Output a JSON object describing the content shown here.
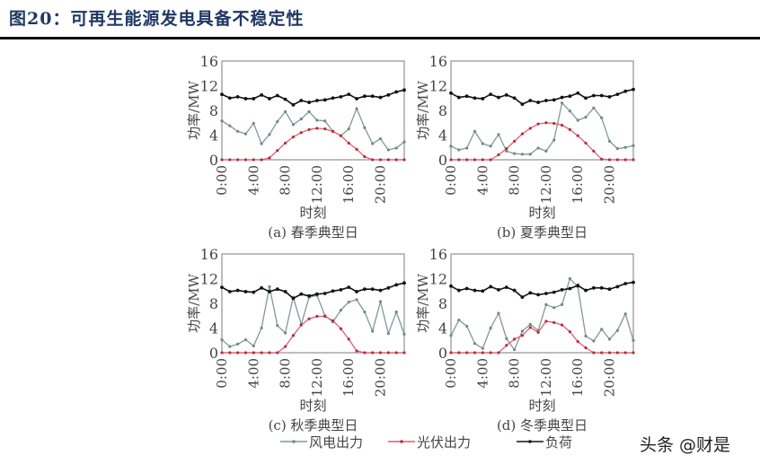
{
  "title": "图20：可再生能源发电具备不稳定性",
  "watermark": "头条 @财是",
  "legend": [
    {
      "label": "风电出力",
      "color": "#7a9a96"
    },
    {
      "label": "光伏出力",
      "color": "#e05a6a"
    },
    {
      "label": "负荷",
      "color": "#111111"
    }
  ],
  "colors": {
    "wind": "#7f9a97",
    "solar": "#e06070",
    "load": "#111111",
    "axis": "#999999",
    "text": "#444444"
  },
  "chart_data": [
    {
      "type": "line",
      "title": "(a) 春季典型日",
      "xlabel": "时刻",
      "ylabel": "功率/MW",
      "ylim": [
        0,
        16
      ],
      "yticks": [
        0,
        4,
        8,
        12,
        16
      ],
      "xtick_labels": [
        "0:00",
        "4:00",
        "8:00",
        "12:00",
        "16:00",
        "20:00"
      ],
      "x": [
        0,
        1,
        2,
        3,
        4,
        5,
        6,
        7,
        8,
        9,
        10,
        11,
        12,
        13,
        14,
        15,
        16,
        17,
        18,
        19,
        20,
        21,
        22,
        23
      ],
      "series": [
        {
          "name": "风电出力",
          "values": [
            6.3,
            5.5,
            4.6,
            4.2,
            5.9,
            2.6,
            4.1,
            6.2,
            7.8,
            5.7,
            6.6,
            7.8,
            6.4,
            6.3,
            4.6,
            3.9,
            5.0,
            8.3,
            5.2,
            2.6,
            3.4,
            1.6,
            1.9,
            2.9
          ]
        },
        {
          "name": "光伏出力",
          "values": [
            0,
            0,
            0,
            0,
            0,
            0,
            0.3,
            1.5,
            2.7,
            3.7,
            4.4,
            4.9,
            5.1,
            5.0,
            4.6,
            3.9,
            2.7,
            1.7,
            0.5,
            0,
            0,
            0,
            0,
            0
          ]
        },
        {
          "name": "负荷",
          "values": [
            10.6,
            10.0,
            10.2,
            9.9,
            9.9,
            10.5,
            9.9,
            10.4,
            9.8,
            8.9,
            9.6,
            9.3,
            9.6,
            9.7,
            10.0,
            10.2,
            10.6,
            9.9,
            10.3,
            10.3,
            10.1,
            10.5,
            11.0,
            11.3
          ]
        }
      ]
    },
    {
      "type": "line",
      "title": "(b) 夏季典型日",
      "xlabel": "时刻",
      "ylabel": "功率/MW",
      "ylim": [
        0,
        16
      ],
      "yticks": [
        0,
        4,
        8,
        12,
        16
      ],
      "xtick_labels": [
        "0:00",
        "4:00",
        "8:00",
        "12:00",
        "16:00",
        "20:00"
      ],
      "x": [
        0,
        1,
        2,
        3,
        4,
        5,
        6,
        7,
        8,
        9,
        10,
        11,
        12,
        13,
        14,
        15,
        16,
        17,
        18,
        19,
        20,
        21,
        22,
        23
      ],
      "series": [
        {
          "name": "风电出力",
          "values": [
            2.2,
            1.6,
            1.9,
            4.6,
            2.6,
            2.2,
            4.1,
            1.4,
            1.0,
            0.9,
            0.9,
            1.9,
            1.4,
            3.2,
            9.2,
            7.9,
            6.4,
            6.9,
            8.4,
            6.8,
            3.0,
            1.8,
            2.0,
            2.3
          ]
        },
        {
          "name": "光伏出力",
          "values": [
            0,
            0,
            0,
            0,
            0,
            0,
            0.8,
            1.8,
            3.0,
            4.2,
            5.1,
            5.8,
            6.0,
            5.9,
            5.6,
            4.9,
            3.9,
            2.7,
            1.4,
            0.1,
            0,
            0,
            0,
            0
          ]
        },
        {
          "name": "负荷",
          "values": [
            10.8,
            10.1,
            10.3,
            10.0,
            9.9,
            10.6,
            10.1,
            10.5,
            10.0,
            9.0,
            9.6,
            9.3,
            9.6,
            9.7,
            10.1,
            10.3,
            10.8,
            10.0,
            10.4,
            10.4,
            10.2,
            10.6,
            11.1,
            11.4
          ]
        }
      ]
    },
    {
      "type": "line",
      "title": "(c) 秋季典型日",
      "xlabel": "时刻",
      "ylabel": "功率/MW",
      "ylim": [
        0,
        16
      ],
      "yticks": [
        0,
        4,
        8,
        12,
        16
      ],
      "xtick_labels": [
        "0:00",
        "4:00",
        "8:00",
        "12:00",
        "16:00",
        "20:00"
      ],
      "x": [
        0,
        1,
        2,
        3,
        4,
        5,
        6,
        7,
        8,
        9,
        10,
        11,
        12,
        13,
        14,
        15,
        16,
        17,
        18,
        19,
        20,
        21,
        22,
        23
      ],
      "series": [
        {
          "name": "风电出力",
          "values": [
            2.1,
            1.0,
            1.4,
            2.1,
            1.1,
            4.0,
            10.7,
            4.4,
            3.2,
            9.0,
            4.6,
            9.0,
            9.3,
            6.0,
            5.0,
            6.9,
            8.2,
            8.6,
            6.6,
            3.5,
            8.3,
            3.1,
            6.6,
            3.0
          ]
        },
        {
          "name": "光伏出力",
          "values": [
            0,
            0,
            0,
            0,
            0,
            0,
            0,
            0,
            1.0,
            2.8,
            4.5,
            5.5,
            5.9,
            5.9,
            5.2,
            3.9,
            2.2,
            0.3,
            0,
            0,
            0,
            0,
            0,
            0
          ]
        },
        {
          "name": "负荷",
          "values": [
            10.6,
            9.9,
            10.1,
            9.9,
            9.8,
            10.5,
            9.9,
            10.3,
            9.9,
            8.8,
            9.5,
            9.2,
            9.5,
            9.6,
            10.0,
            10.2,
            10.6,
            9.9,
            10.3,
            10.3,
            10.1,
            10.5,
            11.0,
            11.3
          ]
        }
      ]
    },
    {
      "type": "line",
      "title": "(d) 冬季典型日",
      "xlabel": "时刻",
      "ylabel": "功率/MW",
      "ylim": [
        0,
        16
      ],
      "yticks": [
        0,
        4,
        8,
        12,
        16
      ],
      "xtick_labels": [
        "0:00",
        "4:00",
        "8:00",
        "12:00",
        "16:00",
        "20:00"
      ],
      "x": [
        0,
        1,
        2,
        3,
        4,
        5,
        6,
        7,
        8,
        9,
        10,
        11,
        12,
        13,
        14,
        15,
        16,
        17,
        18,
        19,
        20,
        21,
        22,
        23
      ],
      "series": [
        {
          "name": "风电出力",
          "values": [
            2.8,
            5.3,
            4.3,
            1.5,
            0.7,
            4.0,
            6.4,
            2.3,
            0.5,
            3.5,
            4.6,
            3.6,
            7.8,
            7.3,
            7.8,
            12.0,
            10.7,
            2.7,
            1.9,
            3.8,
            2.2,
            3.6,
            6.3,
            2.0
          ]
        },
        {
          "name": "光伏出力",
          "values": [
            0,
            0,
            0,
            0,
            0,
            0,
            0,
            1.2,
            2.2,
            2.8,
            4.1,
            3.3,
            5.1,
            4.9,
            4.5,
            3.4,
            1.8,
            0.8,
            0,
            0,
            0,
            0,
            0,
            0
          ]
        },
        {
          "name": "负荷",
          "values": [
            10.8,
            10.1,
            10.4,
            10.1,
            10.0,
            10.7,
            10.2,
            10.6,
            10.1,
            9.0,
            9.7,
            9.4,
            9.6,
            9.8,
            10.2,
            10.4,
            10.9,
            10.1,
            10.5,
            10.5,
            10.3,
            10.7,
            11.2,
            11.4
          ]
        }
      ]
    }
  ]
}
